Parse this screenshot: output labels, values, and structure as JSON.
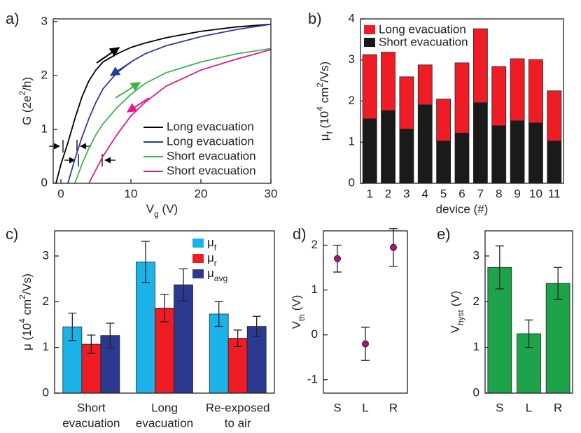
{
  "chart_data": [
    {
      "type": "line",
      "panel_label": "a)",
      "xlabel": {
        "parts": [
          "V",
          "g",
          " (V)"
        ],
        "styles": [
          "n",
          "sub",
          "n"
        ]
      },
      "ylabel": {
        "parts": [
          "G (2e",
          "2",
          "/h)"
        ],
        "styles": [
          "n",
          "sup",
          "n"
        ]
      },
      "xlim": [
        -1.1,
        30
      ],
      "xticks": [
        0,
        10,
        20,
        30
      ],
      "ylim": [
        0,
        3.05
      ],
      "yticks": [
        0,
        1,
        2,
        3
      ],
      "series": [
        {
          "name": "Long evacuation",
          "color": "#000000",
          "x": [
            -0.7,
            0,
            1,
            2,
            3,
            4,
            5,
            6,
            8,
            10,
            12,
            15,
            20,
            25,
            30
          ],
          "values": [
            0,
            0.35,
            0.75,
            1.2,
            1.6,
            1.9,
            2.1,
            2.25,
            2.4,
            2.52,
            2.6,
            2.7,
            2.82,
            2.9,
            2.95
          ]
        },
        {
          "name": "Long evacuation",
          "color": "#2b3a9c",
          "x": [
            1,
            2,
            3,
            4,
            5,
            6,
            8,
            10,
            12,
            15,
            20,
            25,
            30
          ],
          "values": [
            0,
            0.45,
            0.85,
            1.2,
            1.5,
            1.75,
            2.05,
            2.25,
            2.4,
            2.55,
            2.72,
            2.85,
            2.95
          ]
        },
        {
          "name": "Short evacuation",
          "color": "#3cb44a",
          "x": [
            2,
            3,
            4,
            5,
            6,
            8,
            10,
            12,
            15,
            20,
            25,
            30
          ],
          "values": [
            0,
            0.35,
            0.65,
            0.9,
            1.1,
            1.4,
            1.65,
            1.85,
            2.05,
            2.25,
            2.4,
            2.5
          ]
        },
        {
          "name": "Short evacuation",
          "color": "#e0198c",
          "x": [
            4,
            5,
            6,
            8,
            10,
            12,
            15,
            20,
            25,
            30
          ],
          "values": [
            0,
            0.25,
            0.5,
            0.9,
            1.25,
            1.5,
            1.8,
            2.1,
            2.3,
            2.48
          ]
        }
      ]
    },
    {
      "type": "stacked_bar",
      "panel_label": "b)",
      "xlabel": "device (#)",
      "ylabel": {
        "parts": [
          "μ",
          "f",
          " (10",
          "4",
          " cm",
          "2",
          "/Vs)"
        ],
        "styles": [
          "n",
          "sub",
          "n",
          "sup",
          "n",
          "sup",
          "n"
        ]
      },
      "categories": [
        "1",
        "2",
        "3",
        "4",
        "5",
        "6",
        "7",
        "8",
        "9",
        "10",
        "11"
      ],
      "ylim": [
        0,
        4
      ],
      "yticks": [
        0,
        1,
        2,
        3,
        4
      ],
      "series": [
        {
          "name": "Long evacuation",
          "color": "#ee1c25",
          "values": [
            1.56,
            1.42,
            1.27,
            0.97,
            1.02,
            1.71,
            1.8,
            1.44,
            1.51,
            1.54,
            1.22
          ]
        },
        {
          "name": "Short evacuation",
          "color": "#1a1a1a",
          "values": [
            1.57,
            1.77,
            1.32,
            1.91,
            1.03,
            1.22,
            1.96,
            1.4,
            1.52,
            1.47,
            1.03
          ]
        }
      ]
    },
    {
      "type": "grouped_bar",
      "panel_label": "c)",
      "ylabel": {
        "parts": [
          "μ (10",
          "4",
          " cm",
          "2",
          "/Vs)"
        ],
        "styles": [
          "n",
          "sup",
          "n",
          "sup",
          "n"
        ]
      },
      "categories": [
        [
          "Short",
          "evacuation"
        ],
        [
          "Long",
          "evacuation"
        ],
        [
          "Re-exposed",
          "to air"
        ]
      ],
      "ylim": [
        0,
        3.55
      ],
      "yticks": [
        0,
        1,
        2,
        3
      ],
      "series": [
        {
          "name": {
            "parts": [
              "μ",
              "f"
            ],
            "styles": [
              "n",
              "sub"
            ]
          },
          "color": "#1bb3e8",
          "values": [
            1.45,
            2.87,
            1.73
          ],
          "errors": [
            0.3,
            0.45,
            0.27
          ]
        },
        {
          "name": {
            "parts": [
              "μ",
              "r"
            ],
            "styles": [
              "n",
              "sub"
            ]
          },
          "color": "#ee1c25",
          "values": [
            1.07,
            1.86,
            1.2
          ],
          "errors": [
            0.2,
            0.3,
            0.18
          ]
        },
        {
          "name": {
            "parts": [
              "μ",
              "avg"
            ],
            "styles": [
              "n",
              "sub"
            ]
          },
          "color": "#2b3990",
          "values": [
            1.26,
            2.37,
            1.46
          ],
          "errors": [
            0.27,
            0.35,
            0.22
          ]
        }
      ]
    },
    {
      "type": "scatter",
      "panel_label": "d)",
      "ylabel": {
        "parts": [
          "V",
          "th",
          " (V)"
        ],
        "styles": [
          "n",
          "sub",
          "n"
        ]
      },
      "categories": [
        "S",
        "L",
        "R"
      ],
      "ylim": [
        -1.3,
        2.32
      ],
      "yticks": [
        -1,
        0,
        1,
        2
      ],
      "color": "#b0107e",
      "values": [
        1.7,
        -0.2,
        1.95
      ],
      "errors": [
        0.3,
        0.37,
        0.42
      ]
    },
    {
      "type": "bar",
      "panel_label": "e)",
      "ylabel": {
        "parts": [
          "V",
          "hyst",
          " (V)"
        ],
        "styles": [
          "n",
          "sub",
          "n"
        ]
      },
      "categories": [
        "S",
        "L",
        "R"
      ],
      "ylim": [
        0,
        3.55
      ],
      "yticks": [
        0,
        1,
        2,
        3
      ],
      "color": "#1ea34a",
      "values": [
        2.75,
        1.3,
        2.4
      ],
      "errors": [
        0.47,
        0.3,
        0.35
      ]
    }
  ]
}
